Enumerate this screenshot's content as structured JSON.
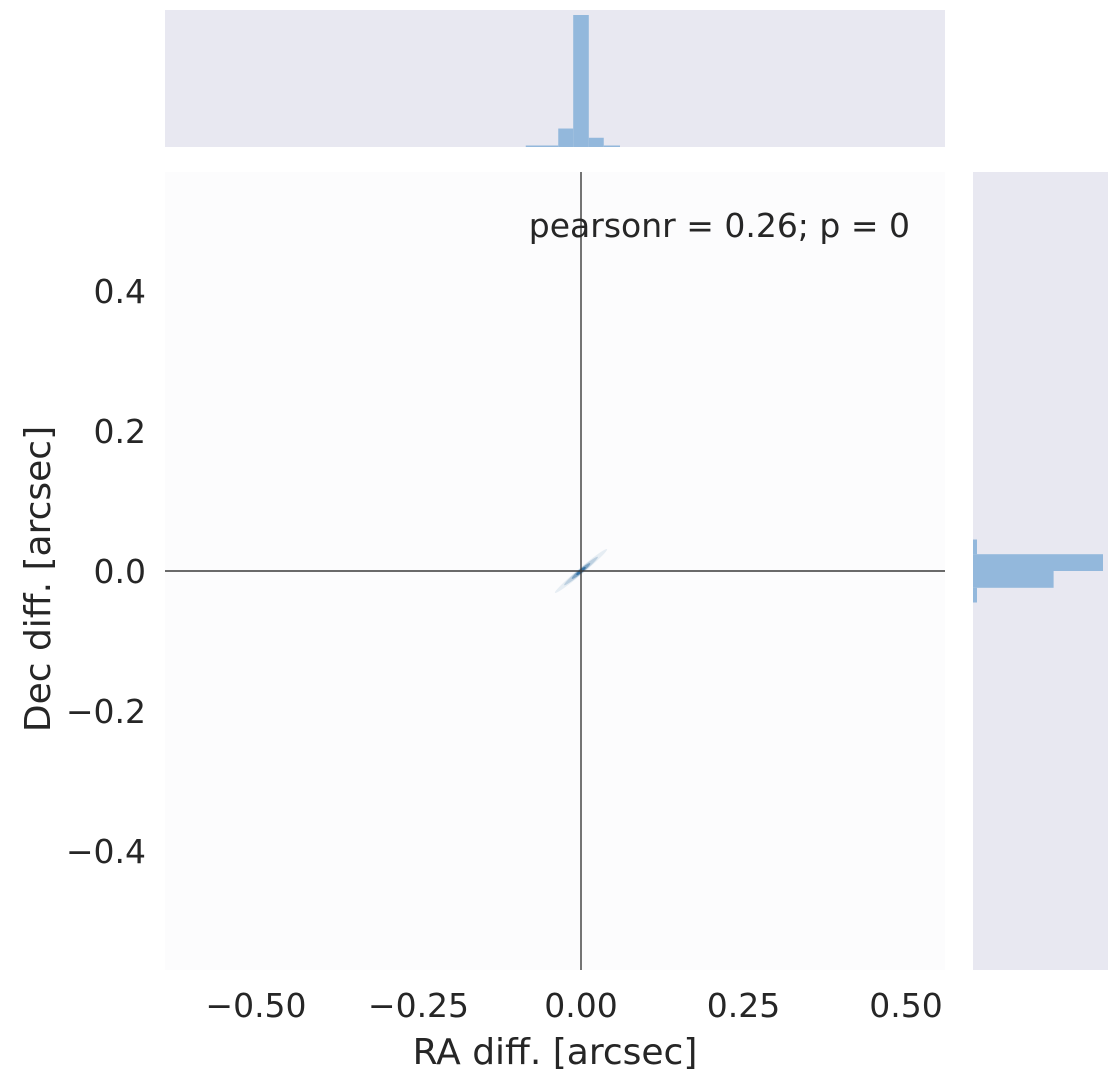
{
  "chart_data": {
    "type": "scatter",
    "subtype": "jointplot-kde-with-marginal-histograms",
    "annotation": "pearsonr = 0.26; p = 0",
    "xlabel": "RA diff. [arcsec]",
    "ylabel": "Dec diff. [arcsec]",
    "xlim": [
      -0.64,
      0.56
    ],
    "ylim": [
      -0.57,
      0.57
    ],
    "xticks": [
      -0.5,
      -0.25,
      0.0,
      0.25,
      0.5
    ],
    "xtick_labels": [
      "−0.50",
      "−0.25",
      "0.00",
      "0.25",
      "0.50"
    ],
    "yticks": [
      0.4,
      0.2,
      0.0,
      -0.2,
      -0.4
    ],
    "ytick_labels": [
      "0.4",
      "0.2",
      "0.0",
      "−0.2",
      "−0.4"
    ],
    "reference_lines": {
      "x": 0.0,
      "y": 0.0
    },
    "kde_center": {
      "x": 0.0,
      "y": 0.0
    },
    "marginal_x_histogram": {
      "bins": [
        {
          "x0": -0.085,
          "x1": -0.035,
          "density": 0.008
        },
        {
          "x0": -0.035,
          "x1": -0.012,
          "density": 0.14
        },
        {
          "x0": -0.012,
          "x1": 0.012,
          "density": 1.0
        },
        {
          "x0": 0.012,
          "x1": 0.035,
          "density": 0.07
        },
        {
          "x0": 0.035,
          "x1": 0.06,
          "density": 0.008
        }
      ]
    },
    "marginal_y_histogram": {
      "bins": [
        {
          "y0": 0.045,
          "y1": 0.024,
          "density": 0.03
        },
        {
          "y0": 0.024,
          "y1": 0.0,
          "density": 1.0
        },
        {
          "y0": 0.0,
          "y1": -0.024,
          "density": 0.62
        },
        {
          "y0": -0.024,
          "y1": -0.045,
          "density": 0.03
        }
      ]
    },
    "grid": false,
    "colors": {
      "main_background": "#fcfcfd",
      "marginal_background": "#e8e8f1",
      "histogram": "#93b8dc",
      "kde": "#2c6a9e",
      "reference_line": "#3a3a3a",
      "text": "#262626"
    }
  }
}
